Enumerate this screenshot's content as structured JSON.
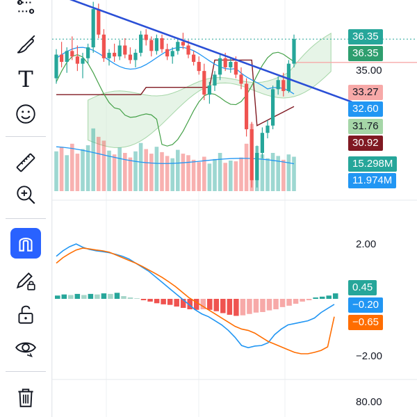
{
  "toolbar": {
    "tools": [
      {
        "name": "trend-lines",
        "icon": "pattern-lines-icon"
      },
      {
        "name": "brush",
        "icon": "brush-icon"
      },
      {
        "name": "text",
        "icon": "text-icon",
        "glyph": "T"
      },
      {
        "name": "emoji",
        "icon": "smiley-icon"
      },
      {
        "name": "measure",
        "icon": "ruler-icon"
      },
      {
        "name": "zoom",
        "icon": "zoom-in-icon"
      },
      {
        "name": "magnet",
        "icon": "magnet-icon",
        "active": true
      },
      {
        "name": "lock-drawings",
        "icon": "pencil-lock-icon"
      },
      {
        "name": "unlock",
        "icon": "unlock-icon"
      },
      {
        "name": "visibility",
        "icon": "eye-icon"
      },
      {
        "name": "delete",
        "icon": "trash-icon"
      }
    ]
  },
  "chart_data": [
    {
      "type": "candlestick",
      "title": "",
      "price_axis_ticks": [
        "35.00"
      ],
      "ylim": [
        28.0,
        38.5
      ],
      "price_badges": [
        {
          "value": "36.35",
          "bg": "#26a69a"
        },
        {
          "value": "36.35",
          "bg": "#2e9e6e"
        },
        {
          "value": "33.27",
          "bg": "#f7a9a8",
          "fg": "#131722"
        },
        {
          "value": "32.60",
          "bg": "#2196f3"
        },
        {
          "value": "31.76",
          "bg": "#a5d6a7",
          "fg": "#131722"
        },
        {
          "value": "30.92",
          "bg": "#801922"
        }
      ],
      "volume_badges": [
        {
          "value": "15.298M",
          "bg": "#26a69a"
        },
        {
          "value": "11.974M",
          "bg": "#2196f3"
        }
      ],
      "candles": [
        [
          34.2,
          35.8,
          33.9,
          35.5
        ],
        [
          35.5,
          36.2,
          34.8,
          35.1
        ],
        [
          35.1,
          35.9,
          34.5,
          35.7
        ],
        [
          35.7,
          36.5,
          35.2,
          35.4
        ],
        [
          35.4,
          36.0,
          34.6,
          35.0
        ],
        [
          35.0,
          35.6,
          34.2,
          35.3
        ],
        [
          35.3,
          36.1,
          35.0,
          35.9
        ],
        [
          35.9,
          38.4,
          35.6,
          38.0
        ],
        [
          38.0,
          38.3,
          36.4,
          36.6
        ],
        [
          36.6,
          36.9,
          35.1,
          35.3
        ],
        [
          35.3,
          35.8,
          34.9,
          35.6
        ],
        [
          35.6,
          36.1,
          35.1,
          35.4
        ],
        [
          35.4,
          36.3,
          35.2,
          36.0
        ],
        [
          36.0,
          36.4,
          35.3,
          35.5
        ],
        [
          35.5,
          35.9,
          35.0,
          35.2
        ],
        [
          35.2,
          35.8,
          34.8,
          35.6
        ],
        [
          35.6,
          36.8,
          35.4,
          36.6
        ],
        [
          36.6,
          36.9,
          36.0,
          36.3
        ],
        [
          36.3,
          36.5,
          35.4,
          35.7
        ],
        [
          35.7,
          36.6,
          35.5,
          36.4
        ],
        [
          36.4,
          36.6,
          35.6,
          35.8
        ],
        [
          35.8,
          36.1,
          35.2,
          35.4
        ],
        [
          35.4,
          35.9,
          35.0,
          35.7
        ],
        [
          35.7,
          36.4,
          35.5,
          36.2
        ],
        [
          36.2,
          36.7,
          35.8,
          36.0
        ],
        [
          36.0,
          36.3,
          35.3,
          35.5
        ],
        [
          35.5,
          35.7,
          34.9,
          35.1
        ],
        [
          35.1,
          35.4,
          34.4,
          34.6
        ],
        [
          34.6,
          35.0,
          33.0,
          33.3
        ],
        [
          33.3,
          34.0,
          32.8,
          33.8
        ],
        [
          33.8,
          34.6,
          33.5,
          34.4
        ],
        [
          34.4,
          35.5,
          34.1,
          35.3
        ],
        [
          35.3,
          35.6,
          34.6,
          34.8
        ],
        [
          34.8,
          35.3,
          34.5,
          35.1
        ],
        [
          35.1,
          35.4,
          34.2,
          34.4
        ],
        [
          34.4,
          34.8,
          33.6,
          33.9
        ],
        [
          33.9,
          34.2,
          31.0,
          31.4
        ],
        [
          31.4,
          31.8,
          28.2,
          28.6
        ],
        [
          28.6,
          30.5,
          28.2,
          30.1
        ],
        [
          30.1,
          31.5,
          29.8,
          31.2
        ],
        [
          31.2,
          31.9,
          30.9,
          31.6
        ],
        [
          31.6,
          33.8,
          31.4,
          33.6
        ],
        [
          33.6,
          34.3,
          33.3,
          34.1
        ],
        [
          34.1,
          34.5,
          33.2,
          33.5
        ],
        [
          33.5,
          35.2,
          33.4,
          35.0
        ],
        [
          35.0,
          36.6,
          34.8,
          36.35
        ]
      ],
      "volumes": [
        0.52,
        0.58,
        0.47,
        0.62,
        0.49,
        0.55,
        0.6,
        0.82,
        0.71,
        0.66,
        0.53,
        0.48,
        0.57,
        0.5,
        0.44,
        0.52,
        0.63,
        0.55,
        0.49,
        0.58,
        0.51,
        0.46,
        0.43,
        0.54,
        0.49,
        0.47,
        0.41,
        0.38,
        0.45,
        0.36,
        0.42,
        0.5,
        0.37,
        0.4,
        0.39,
        0.44,
        0.62,
        0.88,
        0.59,
        0.48,
        0.43,
        0.5,
        0.46,
        0.41,
        0.48,
        0.45
      ],
      "trend_line": [
        [
          0,
          38.9
        ],
        [
          52,
          32.9
        ]
      ]
    },
    {
      "type": "line",
      "series": [
        {
          "color": "#2196f3",
          "values": [
            1.55,
            1.75,
            1.9,
            2.0,
            1.88,
            1.8,
            1.75,
            1.72,
            1.68,
            1.62,
            1.55,
            1.45,
            1.3,
            1.15,
            1.0,
            0.8,
            0.6,
            0.4,
            0.2,
            0.0,
            -0.2,
            -0.4,
            -0.55,
            -0.65,
            -0.8,
            -0.95,
            -1.15,
            -1.4,
            -1.7,
            -1.78,
            -1.72,
            -1.7,
            -1.6,
            -1.3,
            -1.1,
            -0.95,
            -0.9,
            -0.85,
            -0.8,
            -0.7,
            -0.5,
            -0.35,
            -0.2
          ]
        },
        {
          "color": "#ff6d00",
          "values": [
            1.3,
            1.5,
            1.65,
            1.78,
            1.85,
            1.82,
            1.78,
            1.75,
            1.7,
            1.6,
            1.5,
            1.4,
            1.3,
            1.18,
            1.05,
            0.92,
            0.78,
            0.62,
            0.45,
            0.25,
            0.05,
            -0.1,
            -0.25,
            -0.4,
            -0.55,
            -0.7,
            -0.85,
            -1.0,
            -1.1,
            -1.15,
            -1.25,
            -1.4,
            -1.55,
            -1.65,
            -1.75,
            -1.85,
            -1.95,
            -2.0,
            -2.0,
            -1.95,
            -1.88,
            -1.75,
            -0.65
          ]
        }
      ],
      "histogram": [
        0.12,
        0.16,
        0.14,
        0.18,
        0.14,
        0.18,
        0.16,
        0.2,
        0.18,
        0.22,
        0.1,
        0.05,
        0.02,
        -0.05,
        -0.1,
        -0.16,
        -0.2,
        -0.22,
        -0.28,
        -0.33,
        -0.38,
        -0.4,
        -0.38,
        -0.4,
        -0.45,
        -0.52,
        -0.58,
        -0.62,
        -0.6,
        -0.55,
        -0.5,
        -0.48,
        -0.42,
        -0.38,
        -0.3,
        -0.25,
        -0.18,
        -0.1,
        -0.05,
        0.05,
        0.08,
        0.12,
        0.2
      ],
      "axis_ticks": [
        "2.00",
        "−2.00"
      ],
      "ylim": [
        -2.6,
        2.6
      ],
      "badges": [
        {
          "value": "0.45",
          "bg": "#26a69a"
        },
        {
          "value": "−0.20",
          "bg": "#2196f3"
        },
        {
          "value": "−0.65",
          "bg": "#ff6d00"
        }
      ]
    },
    {
      "type": "line",
      "axis_ticks": [
        "80.00"
      ]
    }
  ]
}
